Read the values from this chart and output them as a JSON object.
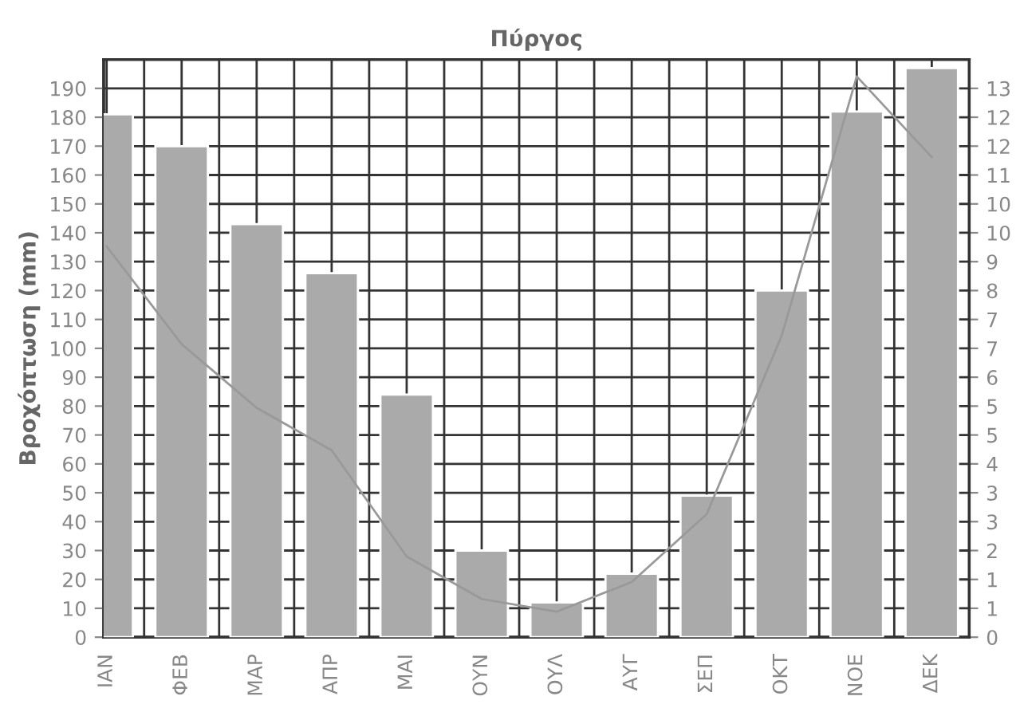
{
  "chart_data": {
    "type": "bar",
    "title": "Πύργος",
    "ylabel": "Βροχόπτωση (mm)",
    "categories": [
      "ΙΑΝ",
      "ΦΕΒ",
      "ΜΑΡ",
      "ΑΠΡ",
      "ΜΑΙ",
      "ΟΥΝ",
      "ΟΥΛ",
      "ΑΥΓ",
      "ΣΕΠ",
      "ΟΚΤ",
      "ΝΟΕ",
      "ΔΕΚ"
    ],
    "series": [
      {
        "color": "#aaaaaa",
        "values": [
          181,
          170,
          143,
          126,
          84,
          30,
          12,
          22,
          49,
          120,
          182,
          197
        ]
      },
      {
        "type": "line",
        "axis": "y2",
        "color": "#999999",
        "values": [
          9.2,
          6.9,
          5.4,
          4.4,
          1.9,
          0.9,
          0.6,
          1.3,
          2.9,
          7.1,
          13.2,
          11.3
        ]
      }
    ],
    "ylim": [
      0,
      200
    ],
    "yticks": [
      0,
      10,
      20,
      30,
      40,
      50,
      60,
      70,
      80,
      90,
      100,
      110,
      120,
      130,
      140,
      150,
      160,
      170,
      180,
      190
    ],
    "y2lim": [
      0,
      13.6
    ],
    "y2ticks": [
      {
        "value": 0,
        "label": "0"
      },
      {
        "value": 0.68,
        "label": "1"
      },
      {
        "value": 1.36,
        "label": "1"
      },
      {
        "value": 2.04,
        "label": "2"
      },
      {
        "value": 2.72,
        "label": "3"
      },
      {
        "value": 3.4,
        "label": "3"
      },
      {
        "value": 4.08,
        "label": "4"
      },
      {
        "value": 4.76,
        "label": "5"
      },
      {
        "value": 5.44,
        "label": "5"
      },
      {
        "value": 6.12,
        "label": "6"
      },
      {
        "value": 6.8,
        "label": "7"
      },
      {
        "value": 7.48,
        "label": "7"
      },
      {
        "value": 8.16,
        "label": "8"
      },
      {
        "value": 8.84,
        "label": "9"
      },
      {
        "value": 9.52,
        "label": "10"
      },
      {
        "value": 10.2,
        "label": "10"
      },
      {
        "value": 10.88,
        "label": "11"
      },
      {
        "value": 11.56,
        "label": "12"
      },
      {
        "value": 12.24,
        "label": "12"
      },
      {
        "value": 12.92,
        "label": "13"
      }
    ],
    "grid": true,
    "line_style": "solid",
    "marker": "none",
    "legend": false
  }
}
